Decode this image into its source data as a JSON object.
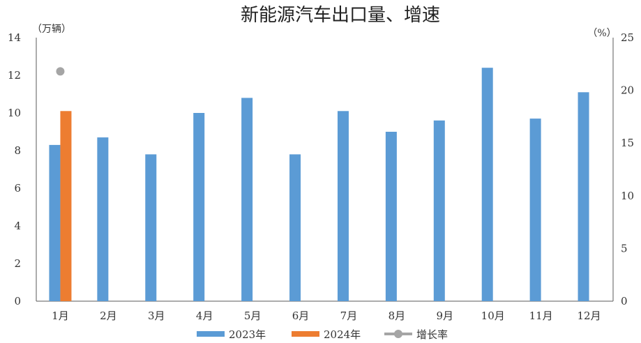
{
  "chart_data": {
    "type": "bar",
    "title": "新能源汽车出口量、增速",
    "y_left_unit": "（万辆）",
    "y_right_unit": "（%）",
    "categories": [
      "1月",
      "2月",
      "3月",
      "4月",
      "5月",
      "6月",
      "7月",
      "8月",
      "9月",
      "10月",
      "11月",
      "12月"
    ],
    "y_left_ticks": [
      "0",
      "2",
      "4",
      "6",
      "8",
      "10",
      "12",
      "14"
    ],
    "y_right_ticks": [
      "0",
      "5",
      "10",
      "15",
      "20",
      "25"
    ],
    "ylim_left": [
      0,
      14
    ],
    "ylim_right": [
      0,
      25
    ],
    "series": [
      {
        "name": "2023年",
        "type": "bar",
        "color": "#5b9bd5",
        "values": [
          8.3,
          8.7,
          7.8,
          10.0,
          10.8,
          7.8,
          10.1,
          9.0,
          9.6,
          12.4,
          9.7,
          11.1
        ]
      },
      {
        "name": "2024年",
        "type": "bar",
        "color": "#ed7d31",
        "values": [
          10.1,
          null,
          null,
          null,
          null,
          null,
          null,
          null,
          null,
          null,
          null,
          null
        ]
      },
      {
        "name": "增长率",
        "type": "line",
        "axis": "right",
        "color": "#a5a5a5",
        "values": [
          21.8,
          null,
          null,
          null,
          null,
          null,
          null,
          null,
          null,
          null,
          null,
          null
        ]
      }
    ],
    "legend_position": "bottom",
    "grid": false
  }
}
